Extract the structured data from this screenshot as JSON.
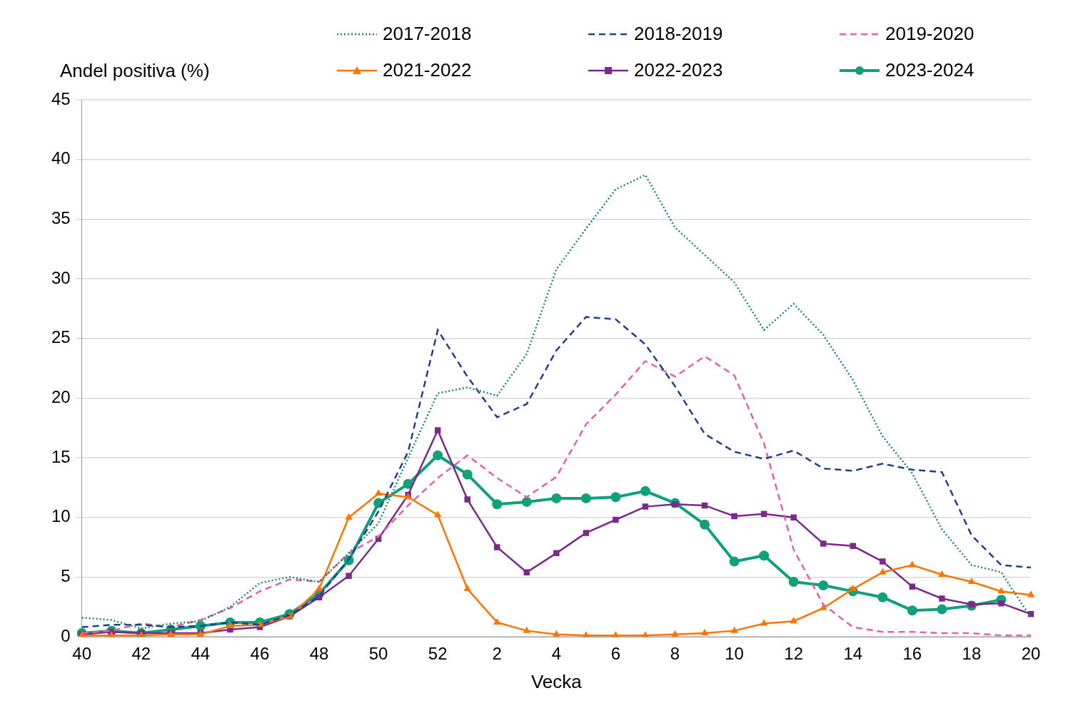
{
  "chart_data": {
    "type": "line",
    "y_label": "Andel positiva (%)",
    "x_label": "Vecka",
    "categories": [
      "40",
      null,
      "42",
      null,
      "44",
      null,
      "46",
      null,
      "48",
      null,
      "50",
      null,
      "52",
      null,
      "2",
      null,
      "4",
      null,
      "6",
      null,
      "8",
      null,
      "10",
      null,
      "12",
      null,
      "14",
      null,
      "16",
      null,
      "18",
      null,
      "20"
    ],
    "ylim": [
      0,
      45
    ],
    "yticks": [
      0,
      5,
      10,
      15,
      20,
      25,
      30,
      35,
      40,
      45
    ],
    "grid": true,
    "legend": "top",
    "series": [
      {
        "name": "2017-2018",
        "color": "#1b8a6b",
        "marker": "none",
        "line_style": "dotted",
        "values": [
          1.6,
          1.4,
          0.7,
          1.1,
          1.3,
          2.5,
          4.5,
          5.0,
          4.6,
          7.0,
          9.5,
          15.0,
          20.4,
          20.9,
          20.2,
          23.7,
          30.8,
          34.2,
          37.5,
          38.7,
          34.3,
          32.0,
          29.7,
          25.7,
          27.9,
          25.3,
          21.5,
          16.8,
          13.7,
          9.0,
          6.0,
          5.4,
          1.6
        ]
      },
      {
        "name": "2018-2019",
        "color": "#1f3f8f",
        "marker": "none",
        "line_style": "dashed",
        "values": [
          0.8,
          1.0,
          1.0,
          0.8,
          0.9,
          1.2,
          1.0,
          1.8,
          3.4,
          6.5,
          10.5,
          15.5,
          25.7,
          21.8,
          18.4,
          19.5,
          24.0,
          26.8,
          26.6,
          24.5,
          21.0,
          17.0,
          15.5,
          14.9,
          15.6,
          14.1,
          13.9,
          14.5,
          14.0,
          13.8,
          8.5,
          6.0,
          5.8
        ]
      },
      {
        "name": "2019-2020",
        "color": "#e8609e",
        "marker": "none",
        "line_style": "dashed",
        "values": [
          0.3,
          0.5,
          1.1,
          0.8,
          1.4,
          2.4,
          3.8,
          4.8,
          4.6,
          7.0,
          8.4,
          11.0,
          13.3,
          15.2,
          13.3,
          11.7,
          13.4,
          17.8,
          20.3,
          23.1,
          21.8,
          23.5,
          21.9,
          16.2,
          7.3,
          2.7,
          0.8,
          0.4,
          0.4,
          0.3,
          0.3,
          0.1,
          0.1
        ]
      },
      {
        "name": "2021-2022",
        "color": "#ff7400",
        "marker": "triangle",
        "line_style": "solid",
        "values": [
          0.1,
          0.1,
          0.1,
          0.2,
          0.2,
          0.9,
          1.0,
          1.7,
          4.0,
          10.0,
          12.0,
          11.7,
          10.2,
          4.0,
          1.2,
          0.5,
          0.2,
          0.1,
          0.1,
          0.1,
          0.2,
          0.3,
          0.5,
          1.1,
          1.3,
          2.4,
          4.0,
          5.4,
          6.0,
          5.2,
          4.6,
          3.8,
          3.5
        ]
      },
      {
        "name": "2022-2023",
        "color": "#7b2a8c",
        "marker": "square",
        "line_style": "solid",
        "values": [
          0.2,
          0.4,
          0.3,
          0.3,
          0.3,
          0.6,
          0.8,
          1.7,
          3.3,
          5.1,
          8.2,
          11.9,
          17.3,
          11.5,
          7.5,
          5.4,
          7.0,
          8.7,
          9.8,
          10.9,
          11.1,
          11.0,
          10.1,
          10.3,
          10.0,
          7.8,
          7.6,
          6.3,
          4.2,
          3.2,
          2.7,
          2.8,
          1.9
        ]
      },
      {
        "name": "2023-2024",
        "color": "#0fa07c",
        "marker": "circle",
        "line_style": "solid",
        "values": [
          0.3,
          0.5,
          0.3,
          0.6,
          0.9,
          1.2,
          1.2,
          1.9,
          3.6,
          6.4,
          11.2,
          12.8,
          15.2,
          13.6,
          11.1,
          11.3,
          11.6,
          11.6,
          11.7,
          12.2,
          11.2,
          9.4,
          6.3,
          6.8,
          4.6,
          4.3,
          3.8,
          3.3,
          2.2,
          2.3,
          2.6,
          3.1,
          null
        ]
      }
    ]
  }
}
